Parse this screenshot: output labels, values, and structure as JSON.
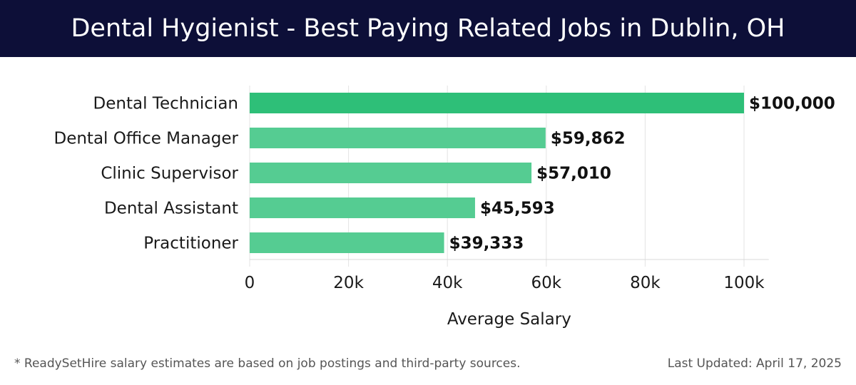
{
  "header": {
    "title": "Dental Hygienist - Best Paying Related Jobs in Dublin, OH"
  },
  "chart_data": {
    "type": "bar",
    "orientation": "horizontal",
    "title": "Dental Hygienist - Best Paying Related Jobs in Dublin, OH",
    "categories": [
      "Dental Technician",
      "Dental Office Manager",
      "Clinic Supervisor",
      "Dental Assistant",
      "Practitioner"
    ],
    "values": [
      100000,
      59862,
      57010,
      45593,
      39333
    ],
    "value_labels": [
      "$100,000",
      "$59,862",
      "$57,010",
      "$45,593",
      "$39,333"
    ],
    "xlabel": "Average Salary",
    "ylabel": "",
    "xlim": [
      0,
      105000
    ],
    "xticks": [
      0,
      20000,
      40000,
      60000,
      80000,
      100000
    ],
    "xtick_labels": [
      "0",
      "20k",
      "40k",
      "60k",
      "80k",
      "100k"
    ],
    "grid": true,
    "colors": {
      "top_bar": "#2ebf78",
      "bar": "#55cc92"
    }
  },
  "footer": {
    "note": "* ReadySetHire salary estimates are based on job postings and third-party sources.",
    "updated": "Last Updated: April 17, 2025"
  }
}
